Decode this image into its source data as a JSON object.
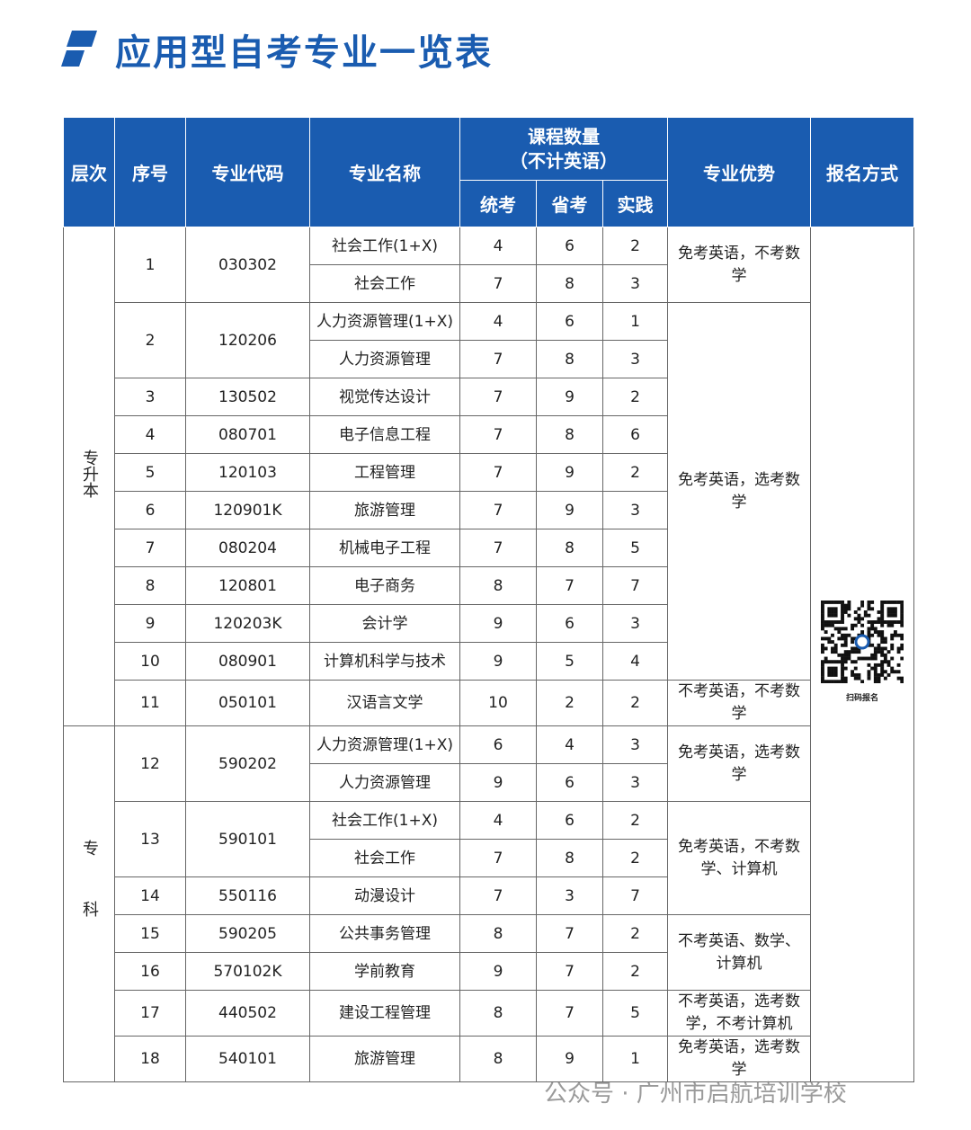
{
  "header": {
    "title": "应用型自考专业一览表"
  },
  "table": {
    "columns": {
      "level": "层次",
      "no": "序号",
      "code": "专业代码",
      "name": "专业名称",
      "courses": {
        "title": "课程数量",
        "note": "（不计英语）",
        "subs": [
          "统考",
          "省考",
          "实践"
        ]
      },
      "advantage": "专业优势",
      "signup": "报名方式"
    },
    "signup_caption": "扫码报名",
    "sections": [
      {
        "level": "专升本",
        "groups": [
          {
            "advantage": "免考英语，不考数学",
            "majors": [
              {
                "no": 1,
                "code": "030302",
                "programs": [
                  {
                    "name": "社会工作(1+X)",
                    "exam": [
                      4,
                      6,
                      2
                    ]
                  },
                  {
                    "name": "社会工作",
                    "exam": [
                      7,
                      8,
                      3
                    ]
                  }
                ]
              }
            ]
          },
          {
            "advantage": "免考英语，选考数学",
            "majors": [
              {
                "no": 2,
                "code": "120206",
                "programs": [
                  {
                    "name": "人力资源管理(1+X)",
                    "exam": [
                      4,
                      6,
                      1
                    ]
                  },
                  {
                    "name": "人力资源管理",
                    "exam": [
                      7,
                      8,
                      3
                    ]
                  }
                ]
              },
              {
                "no": 3,
                "code": "130502",
                "programs": [
                  {
                    "name": "视觉传达设计",
                    "exam": [
                      7,
                      9,
                      2
                    ]
                  }
                ]
              },
              {
                "no": 4,
                "code": "080701",
                "programs": [
                  {
                    "name": "电子信息工程",
                    "exam": [
                      7,
                      8,
                      6
                    ]
                  }
                ]
              },
              {
                "no": 5,
                "code": "120103",
                "programs": [
                  {
                    "name": "工程管理",
                    "exam": [
                      7,
                      9,
                      2
                    ]
                  }
                ]
              },
              {
                "no": 6,
                "code": "120901K",
                "programs": [
                  {
                    "name": "旅游管理",
                    "exam": [
                      7,
                      9,
                      3
                    ]
                  }
                ]
              },
              {
                "no": 7,
                "code": "080204",
                "programs": [
                  {
                    "name": "机械电子工程",
                    "exam": [
                      7,
                      8,
                      5
                    ]
                  }
                ]
              },
              {
                "no": 8,
                "code": "120801",
                "programs": [
                  {
                    "name": "电子商务",
                    "exam": [
                      8,
                      7,
                      7
                    ]
                  }
                ]
              },
              {
                "no": 9,
                "code": "120203K",
                "programs": [
                  {
                    "name": "会计学",
                    "exam": [
                      9,
                      6,
                      3
                    ]
                  }
                ]
              },
              {
                "no": 10,
                "code": "080901",
                "programs": [
                  {
                    "name": "计算机科学与技术",
                    "exam": [
                      9,
                      5,
                      4
                    ]
                  }
                ]
              }
            ]
          },
          {
            "advantage": "不考英语，不考数学",
            "majors": [
              {
                "no": 11,
                "code": "050101",
                "programs": [
                  {
                    "name": "汉语言文学",
                    "exam": [
                      10,
                      2,
                      2
                    ]
                  }
                ]
              }
            ]
          }
        ]
      },
      {
        "level": "专科",
        "groups": [
          {
            "advantage": "免考英语，选考数学",
            "majors": [
              {
                "no": 12,
                "code": "590202",
                "programs": [
                  {
                    "name": "人力资源管理(1+X)",
                    "exam": [
                      6,
                      4,
                      3
                    ]
                  },
                  {
                    "name": "人力资源管理",
                    "exam": [
                      9,
                      6,
                      3
                    ]
                  }
                ]
              }
            ]
          },
          {
            "advantage": "免考英语，不考数学、计算机",
            "majors": [
              {
                "no": 13,
                "code": "590101",
                "programs": [
                  {
                    "name": "社会工作(1+X)",
                    "exam": [
                      4,
                      6,
                      2
                    ]
                  },
                  {
                    "name": "社会工作",
                    "exam": [
                      7,
                      8,
                      2
                    ]
                  }
                ]
              },
              {
                "no": 14,
                "code": "550116",
                "programs": [
                  {
                    "name": "动漫设计",
                    "exam": [
                      7,
                      3,
                      7
                    ]
                  }
                ]
              }
            ]
          },
          {
            "advantage": "不考英语、数学、计算机",
            "majors": [
              {
                "no": 15,
                "code": "590205",
                "programs": [
                  {
                    "name": "公共事务管理",
                    "exam": [
                      8,
                      7,
                      2
                    ]
                  }
                ]
              },
              {
                "no": 16,
                "code": "570102K",
                "programs": [
                  {
                    "name": "学前教育",
                    "exam": [
                      9,
                      7,
                      2
                    ]
                  }
                ]
              }
            ]
          },
          {
            "advantage": "不考英语，选考数学，不考计算机",
            "majors": [
              {
                "no": 17,
                "code": "440502",
                "programs": [
                  {
                    "name": "建设工程管理",
                    "exam": [
                      8,
                      7,
                      5
                    ]
                  }
                ]
              }
            ]
          },
          {
            "advantage": "免考英语，选考数学",
            "majors": [
              {
                "no": 18,
                "code": "540101",
                "programs": [
                  {
                    "name": "旅游管理",
                    "exam": [
                      8,
                      9,
                      1
                    ]
                  }
                ]
              }
            ]
          }
        ]
      }
    ]
  },
  "watermark": "公众号 · 广州市启航培训学校"
}
